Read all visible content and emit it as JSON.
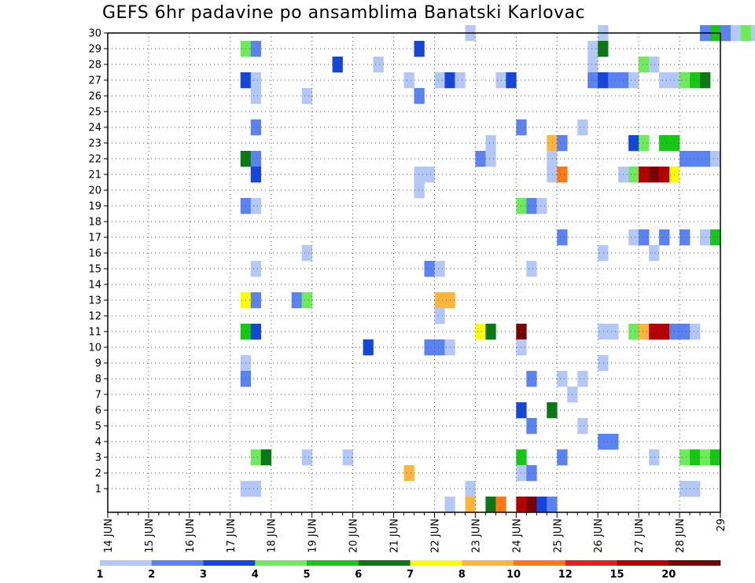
{
  "chart_data": {
    "type": "heatmap",
    "title": "GEFS 6hr padavine po ansamblima Banatski Karlovac",
    "x_tick_labels": [
      "14 JUN",
      "15 JUN",
      "16 JUN",
      "17 JUN",
      "18 JUN",
      "19 JUN",
      "20 JUN",
      "21 JUN",
      "22 JUN",
      "23 JUN",
      "24 JUN",
      "25 JUN",
      "26 JUN",
      "27 JUN",
      "28 JUN",
      "29"
    ],
    "y_tick_labels": [
      "1",
      "2",
      "3",
      "4",
      "5",
      "6",
      "7",
      "8",
      "9",
      "10",
      "11",
      "12",
      "13",
      "14",
      "15",
      "16",
      "17",
      "18",
      "19",
      "20",
      "21",
      "22",
      "23",
      "24",
      "25",
      "26",
      "27",
      "28",
      "29",
      "30"
    ],
    "x_range_days": [
      0,
      60
    ],
    "y_range_members": [
      0,
      30
    ],
    "grid": true,
    "legend": "bottom",
    "colorbar_labels": [
      "1",
      "2",
      "3",
      "4",
      "5",
      "6",
      "7",
      "8",
      "10",
      "12",
      "15",
      "20"
    ],
    "colorbar_colors": [
      "#b4c8f8",
      "#5a82f0",
      "#1446dc",
      "#6eeb5a",
      "#14c814",
      "#0a7814",
      "#ffff00",
      "#ffb43c",
      "#ff7814",
      "#e61e1e",
      "#b40000",
      "#780000"
    ],
    "cells": [
      [
        35,
        30,
        1
      ],
      [
        48,
        30,
        1
      ],
      [
        58,
        30,
        2
      ],
      [
        59,
        30,
        5
      ],
      [
        60,
        30,
        2
      ],
      [
        61,
        30,
        1
      ],
      [
        62,
        30,
        4
      ],
      [
        63,
        30,
        1
      ],
      [
        13,
        29,
        4
      ],
      [
        14,
        29,
        2
      ],
      [
        30,
        29,
        3
      ],
      [
        47,
        29,
        1
      ],
      [
        48,
        29,
        6
      ],
      [
        22,
        28,
        3
      ],
      [
        26,
        28,
        1
      ],
      [
        47,
        28,
        1
      ],
      [
        52,
        28,
        4
      ],
      [
        53,
        28,
        1
      ],
      [
        13,
        27,
        3
      ],
      [
        14,
        27,
        1
      ],
      [
        29,
        27,
        1
      ],
      [
        32,
        27,
        1
      ],
      [
        33,
        27,
        3
      ],
      [
        34,
        27,
        1
      ],
      [
        38,
        27,
        1
      ],
      [
        39,
        27,
        3
      ],
      [
        47,
        27,
        2
      ],
      [
        48,
        27,
        3
      ],
      [
        49,
        27,
        2
      ],
      [
        50,
        27,
        2
      ],
      [
        51,
        27,
        1
      ],
      [
        54,
        27,
        1
      ],
      [
        55,
        27,
        1
      ],
      [
        56,
        27,
        4
      ],
      [
        57,
        27,
        5
      ],
      [
        58,
        27,
        6
      ],
      [
        14,
        26,
        1
      ],
      [
        19,
        26,
        1
      ],
      [
        30,
        26,
        2
      ],
      [
        14,
        24,
        2
      ],
      [
        40,
        24,
        2
      ],
      [
        46,
        24,
        1
      ],
      [
        37,
        23,
        1
      ],
      [
        43,
        23,
        8
      ],
      [
        44,
        23,
        2
      ],
      [
        51,
        23,
        3
      ],
      [
        52,
        23,
        4
      ],
      [
        54,
        23,
        5
      ],
      [
        55,
        23,
        5
      ],
      [
        13,
        22,
        6
      ],
      [
        14,
        22,
        2
      ],
      [
        36,
        22,
        2
      ],
      [
        37,
        22,
        1
      ],
      [
        43,
        22,
        1
      ],
      [
        56,
        22,
        2
      ],
      [
        57,
        22,
        2
      ],
      [
        58,
        22,
        2
      ],
      [
        59,
        22,
        1
      ],
      [
        14,
        21,
        3
      ],
      [
        30,
        21,
        1
      ],
      [
        31,
        21,
        1
      ],
      [
        43,
        21,
        1
      ],
      [
        44,
        21,
        9
      ],
      [
        50,
        21,
        1
      ],
      [
        51,
        21,
        4
      ],
      [
        52,
        21,
        11
      ],
      [
        53,
        21,
        12
      ],
      [
        54,
        21,
        11
      ],
      [
        55,
        21,
        7
      ],
      [
        30,
        20,
        1
      ],
      [
        13,
        19,
        2
      ],
      [
        14,
        19,
        1
      ],
      [
        40,
        19,
        4
      ],
      [
        41,
        19,
        2
      ],
      [
        42,
        19,
        1
      ],
      [
        44,
        17,
        2
      ],
      [
        19,
        16,
        1
      ],
      [
        51,
        17,
        1
      ],
      [
        52,
        17,
        2
      ],
      [
        54,
        17,
        2
      ],
      [
        56,
        17,
        2
      ],
      [
        58,
        17,
        1
      ],
      [
        59,
        17,
        5
      ],
      [
        48,
        16,
        1
      ],
      [
        53,
        16,
        1
      ],
      [
        14,
        15,
        1
      ],
      [
        31,
        15,
        2
      ],
      [
        32,
        15,
        1
      ],
      [
        41,
        15,
        1
      ],
      [
        13,
        13,
        7
      ],
      [
        14,
        13,
        2
      ],
      [
        18,
        13,
        2
      ],
      [
        19,
        13,
        4
      ],
      [
        32,
        13,
        8
      ],
      [
        33,
        13,
        8
      ],
      [
        13,
        11,
        5
      ],
      [
        14,
        11,
        3
      ],
      [
        32,
        12,
        1
      ],
      [
        36,
        11,
        7
      ],
      [
        37,
        11,
        6
      ],
      [
        40,
        11,
        12
      ],
      [
        48,
        11,
        1
      ],
      [
        49,
        11,
        1
      ],
      [
        51,
        11,
        4
      ],
      [
        52,
        11,
        8
      ],
      [
        53,
        11,
        11
      ],
      [
        54,
        11,
        11
      ],
      [
        55,
        11,
        2
      ],
      [
        56,
        11,
        2
      ],
      [
        57,
        11,
        1
      ],
      [
        25,
        10,
        3
      ],
      [
        31,
        10,
        2
      ],
      [
        32,
        10,
        2
      ],
      [
        33,
        10,
        1
      ],
      [
        40,
        10,
        1
      ],
      [
        13,
        9,
        1
      ],
      [
        48,
        9,
        1
      ],
      [
        13,
        8,
        2
      ],
      [
        41,
        8,
        2
      ],
      [
        44,
        8,
        1
      ],
      [
        46,
        8,
        1
      ],
      [
        45,
        7,
        1
      ],
      [
        40,
        6,
        3
      ],
      [
        43,
        6,
        6
      ],
      [
        41,
        5,
        2
      ],
      [
        46,
        5,
        1
      ],
      [
        48,
        4,
        2
      ],
      [
        49,
        4,
        2
      ],
      [
        14,
        3,
        4
      ],
      [
        15,
        3,
        6
      ],
      [
        19,
        3,
        1
      ],
      [
        23,
        3,
        1
      ],
      [
        40,
        3,
        5
      ],
      [
        44,
        3,
        2
      ],
      [
        53,
        3,
        1
      ],
      [
        56,
        3,
        4
      ],
      [
        57,
        3,
        5
      ],
      [
        58,
        3,
        4
      ],
      [
        59,
        3,
        5
      ],
      [
        29,
        2,
        8
      ],
      [
        40,
        2,
        1
      ],
      [
        41,
        2,
        2
      ],
      [
        13,
        1,
        1
      ],
      [
        14,
        1,
        1
      ],
      [
        35,
        1,
        1
      ],
      [
        56,
        1,
        1
      ],
      [
        57,
        1,
        1
      ],
      [
        33,
        0,
        1
      ],
      [
        35,
        0,
        8
      ],
      [
        37,
        0,
        6
      ],
      [
        38,
        0,
        9
      ],
      [
        40,
        0,
        11
      ],
      [
        41,
        0,
        12
      ],
      [
        42,
        0,
        3
      ],
      [
        43,
        0,
        2
      ]
    ]
  }
}
